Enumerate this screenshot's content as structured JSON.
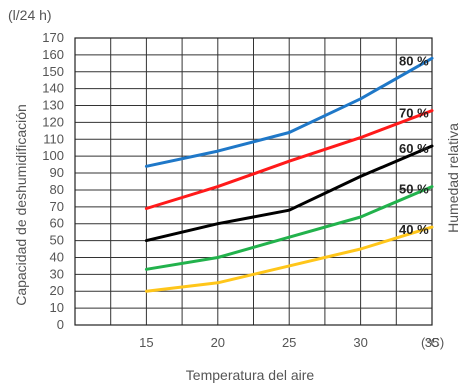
{
  "chart_data": {
    "type": "line",
    "y_unit": "(l/24 h)",
    "x_unit": "(°C)",
    "xlabel": "Temperatura del aire",
    "ylabel": "Capacidad de deshumidificación",
    "right_label": "Humedad relativa",
    "xlim": [
      10,
      35
    ],
    "ylim": [
      0,
      170
    ],
    "x_ticks": [
      "15",
      "20",
      "25",
      "30",
      "35"
    ],
    "y_ticks": [
      "0",
      "10",
      "20",
      "30",
      "40",
      "50",
      "60",
      "70",
      "80",
      "90",
      "100",
      "110",
      "120",
      "130",
      "140",
      "150",
      "160",
      "170"
    ],
    "grid": true,
    "series": [
      {
        "name": "80 %",
        "color": "#1f78c8",
        "x": [
          15,
          20,
          25,
          30,
          35
        ],
        "y": [
          94,
          103,
          114,
          134,
          158
        ]
      },
      {
        "name": "70 %",
        "color": "#ff1a1a",
        "x": [
          15,
          20,
          25,
          30,
          35
        ],
        "y": [
          69,
          82,
          97,
          111,
          127
        ]
      },
      {
        "name": "60 %",
        "color": "#000000",
        "x": [
          15,
          20,
          25,
          30,
          35
        ],
        "y": [
          50,
          60,
          68,
          88,
          106
        ]
      },
      {
        "name": "50 %",
        "color": "#22b24c",
        "x": [
          15,
          20,
          25,
          30,
          35
        ],
        "y": [
          33,
          40,
          52,
          64,
          82
        ]
      },
      {
        "name": "40 %",
        "color": "#ffc61a",
        "x": [
          15,
          20,
          25,
          30,
          35
        ],
        "y": [
          20,
          25,
          35,
          45,
          58
        ]
      }
    ]
  }
}
